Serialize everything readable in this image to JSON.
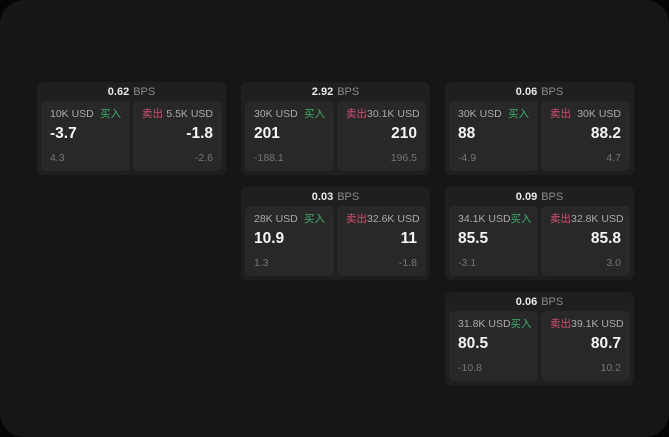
{
  "labels": {
    "buy": "买入",
    "sell": "卖出",
    "bps_unit": "BPS"
  },
  "colors": {
    "buy_green": "#3fae6a",
    "sell_red": "#d34f72",
    "panel_bg": "#161616",
    "card_bg": "#1f1f1f",
    "tile_bg": "#282828"
  },
  "cards": [
    {
      "row": 1,
      "col": 1,
      "bps": "0.62",
      "buy": {
        "amount": "10K USD",
        "value": "-3.7",
        "sub": "4.3"
      },
      "sell": {
        "amount": "5.5K USD",
        "value": "-1.8",
        "sub": "-2.6"
      }
    },
    {
      "row": 1,
      "col": 2,
      "bps": "2.92",
      "buy": {
        "amount": "30K USD",
        "value": "201",
        "sub": "-188.1"
      },
      "sell": {
        "amount": "30.1K USD",
        "value": "210",
        "sub": "196.5"
      }
    },
    {
      "row": 1,
      "col": 3,
      "bps": "0.06",
      "buy": {
        "amount": "30K USD",
        "value": "88",
        "sub": "-4.9"
      },
      "sell": {
        "amount": "30K USD",
        "value": "88.2",
        "sub": "4.7"
      }
    },
    {
      "row": 2,
      "col": 2,
      "bps": "0.03",
      "buy": {
        "amount": "28K USD",
        "value": "10.9",
        "sub": "1.3"
      },
      "sell": {
        "amount": "32.6K USD",
        "value": "11",
        "sub": "-1.8"
      }
    },
    {
      "row": 2,
      "col": 3,
      "bps": "0.09",
      "buy": {
        "amount": "34.1K USD",
        "value": "85.5",
        "sub": "-3.1"
      },
      "sell": {
        "amount": "32.8K USD",
        "value": "85.8",
        "sub": "3.0"
      }
    },
    {
      "row": 3,
      "col": 3,
      "bps": "0.06",
      "buy": {
        "amount": "31.8K USD",
        "value": "80.5",
        "sub": "-10.8"
      },
      "sell": {
        "amount": "39.1K USD",
        "value": "80.7",
        "sub": "10.2"
      }
    }
  ]
}
